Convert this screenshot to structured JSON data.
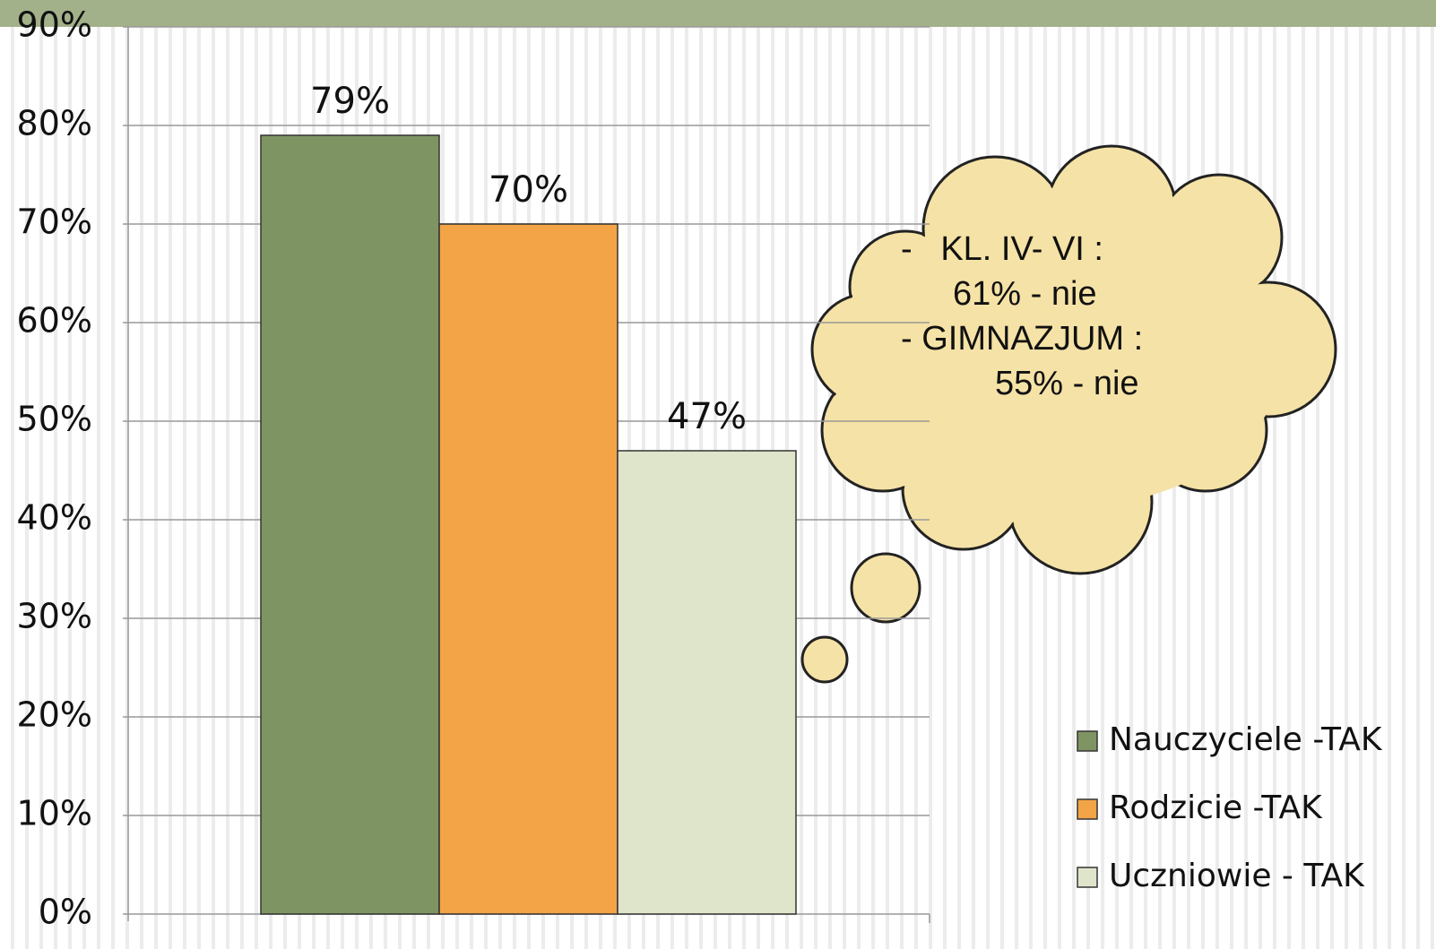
{
  "chart_data": {
    "type": "bar",
    "categories": [
      null
    ],
    "series": [
      {
        "name": "Nauczyciele -TAK",
        "color": "#7f9463",
        "values": [
          79
        ],
        "value_labels": [
          "79%"
        ]
      },
      {
        "name": "Rodzicie -TAK",
        "color": "#f2a446",
        "values": [
          70
        ],
        "value_labels": [
          "70%"
        ]
      },
      {
        "name": "Uczniowie - TAK",
        "color": "#dfe5ca",
        "values": [
          47
        ],
        "value_labels": [
          "47%"
        ]
      }
    ],
    "ylim": [
      0,
      90
    ],
    "yticks": [
      {
        "value": 0,
        "label": "0%"
      },
      {
        "value": 10,
        "label": "10%"
      },
      {
        "value": 20,
        "label": "20%"
      },
      {
        "value": 30,
        "label": "30%"
      },
      {
        "value": 40,
        "label": "40%"
      },
      {
        "value": 50,
        "label": "50%"
      },
      {
        "value": 60,
        "label": "60%"
      },
      {
        "value": 70,
        "label": "70%"
      },
      {
        "value": 80,
        "label": "80%"
      },
      {
        "value": 90,
        "label": "90%"
      }
    ],
    "grid": true,
    "legend": "right",
    "annotation": [
      "-   KL. IV- VI :",
      "61% - nie",
      "- GIMNAZJUM :",
      "55% - nie"
    ]
  }
}
